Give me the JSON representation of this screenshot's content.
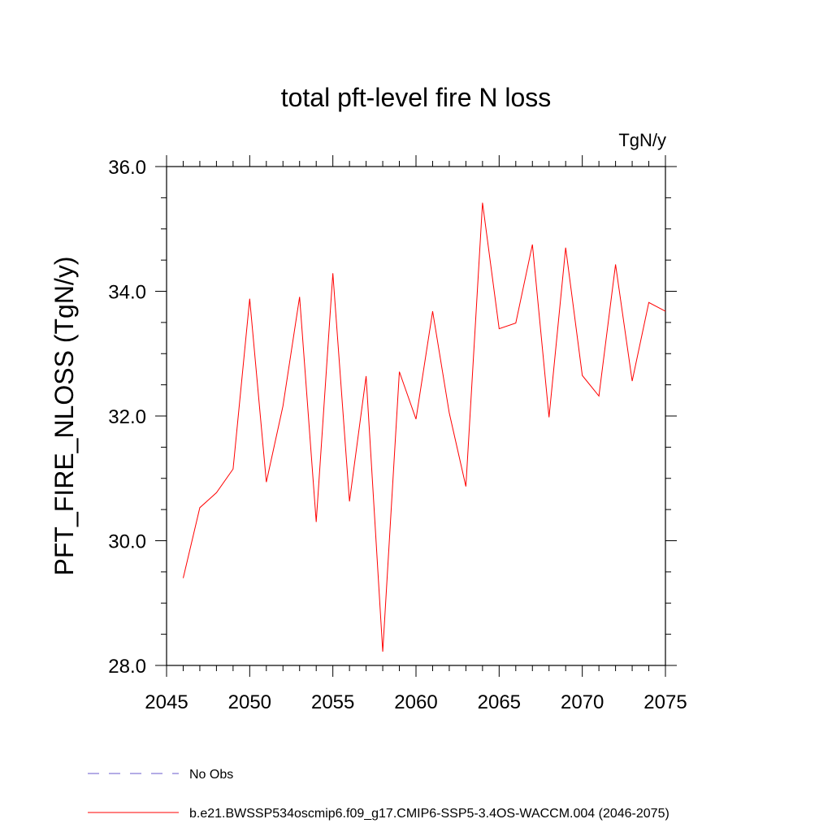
{
  "chart_data": {
    "type": "line",
    "title": "total pft-level fire N loss",
    "units_label": "TgN/y",
    "xlabel": "",
    "ylabel": "PFT_FIRE_NLOSS  (TgN/y)",
    "xlim": [
      2045,
      2075
    ],
    "ylim": [
      28.0,
      36.0
    ],
    "x_ticks": [
      2045,
      2050,
      2055,
      2060,
      2065,
      2070,
      2075
    ],
    "x_tick_labels": [
      "2045",
      "2050",
      "2055",
      "2060",
      "2065",
      "2070",
      "2075"
    ],
    "y_ticks": [
      28.0,
      30.0,
      32.0,
      34.0,
      36.0
    ],
    "y_tick_labels": [
      "28.0",
      "30.0",
      "32.0",
      "34.0",
      "36.0"
    ],
    "grid": false,
    "series": [
      {
        "name": "b.e21.BWSSP534oscmip6.f09_g17.CMIP6-SSP5-3.4OS-WACCM.004 (2046-2075)",
        "color": "#ff0000",
        "style": "solid",
        "x": [
          2046,
          2047,
          2048,
          2049,
          2050,
          2051,
          2052,
          2053,
          2054,
          2055,
          2056,
          2057,
          2058,
          2059,
          2060,
          2061,
          2062,
          2063,
          2064,
          2065,
          2066,
          2067,
          2068,
          2069,
          2070,
          2071,
          2072,
          2073,
          2074,
          2075
        ],
        "values": [
          29.4,
          30.53,
          30.77,
          31.15,
          33.88,
          30.94,
          32.16,
          33.91,
          30.3,
          34.29,
          30.63,
          32.64,
          28.22,
          32.71,
          31.95,
          33.68,
          32.05,
          30.87,
          35.42,
          33.4,
          33.49,
          34.75,
          31.98,
          34.7,
          32.65,
          32.32,
          34.43,
          32.56,
          33.82,
          33.68
        ]
      }
    ],
    "legend": {
      "position": "bottom",
      "entries": [
        {
          "label": "No Obs",
          "color": "#6a5acd",
          "style": "dashed"
        },
        {
          "label": "b.e21.BWSSP534oscmip6.f09_g17.CMIP6-SSP5-3.4OS-WACCM.004 (2046-2075)",
          "color": "#ff0000",
          "style": "solid"
        }
      ]
    }
  }
}
